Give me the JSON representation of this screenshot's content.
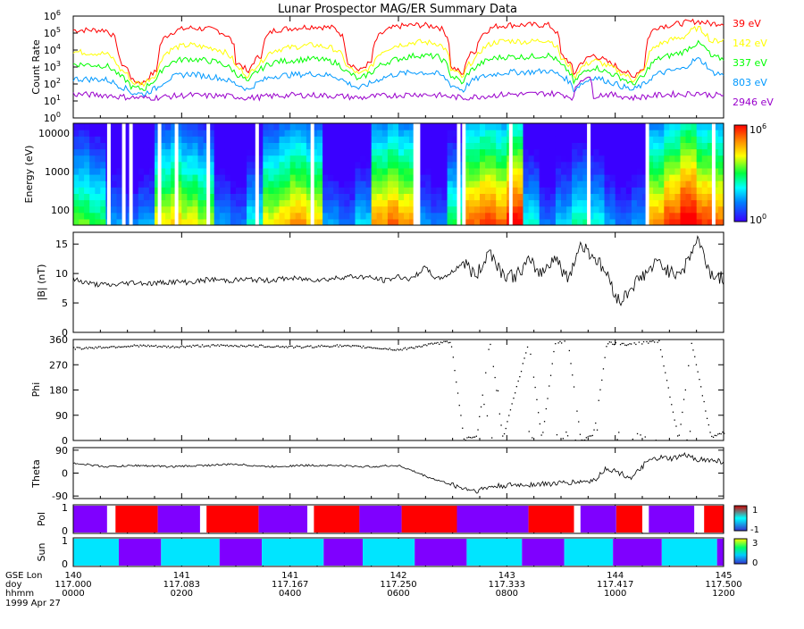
{
  "title": "Lunar Prospector MAG/ER Summary Data",
  "date_label": "1999 Apr 27",
  "chart_data": [
    {
      "panel": "count-rate",
      "type": "line",
      "ylabel": "Count Rate",
      "yscale": "log",
      "ylim": [
        1,
        1000000
      ],
      "yticks": [
        {
          "value": 1,
          "base": "10",
          "exp": "0"
        },
        {
          "value": 10,
          "base": "10",
          "exp": "1"
        },
        {
          "value": 100,
          "base": "10",
          "exp": "2"
        },
        {
          "value": 1000,
          "base": "10",
          "exp": "3"
        },
        {
          "value": 10000,
          "base": "10",
          "exp": "4"
        },
        {
          "value": 100000,
          "base": "10",
          "exp": "5"
        },
        {
          "value": 1000000,
          "base": "10",
          "exp": "6"
        }
      ],
      "series": [
        {
          "name": "39 eV",
          "color": "#ff0000",
          "x": [
            0,
            0.05,
            0.07,
            0.09,
            0.11,
            0.13,
            0.16,
            0.18,
            0.2,
            0.22,
            0.25,
            0.27,
            0.29,
            0.31,
            0.34,
            0.37,
            0.4,
            0.42,
            0.44,
            0.46,
            0.5,
            0.53,
            0.56,
            0.58,
            0.6,
            0.62,
            0.65,
            0.67,
            0.7,
            0.73,
            0.75,
            0.77,
            0.79,
            0.8,
            0.82,
            0.84,
            0.86,
            0.88,
            0.9,
            0.92,
            0.94,
            0.96,
            0.98,
            1
          ],
          "values": [
            150000,
            150000,
            2000,
            150,
            120,
            600,
            150000,
            200000,
            180000,
            150000,
            2000,
            300,
            5000,
            150000,
            200000,
            250000,
            200000,
            2000,
            500,
            2000,
            250000,
            300000,
            250000,
            1000,
            300,
            10000,
            250000,
            300000,
            300000,
            300000,
            5000,
            200,
            3000,
            5000,
            2000,
            800,
            200,
            1000,
            250000,
            300000,
            400000,
            500000,
            350000,
            400000
          ]
        },
        {
          "name": "142 eV",
          "color": "#ffff00",
          "x": [
            0,
            0.05,
            0.07,
            0.09,
            0.11,
            0.13,
            0.16,
            0.18,
            0.2,
            0.22,
            0.25,
            0.27,
            0.29,
            0.31,
            0.34,
            0.37,
            0.4,
            0.42,
            0.44,
            0.46,
            0.5,
            0.53,
            0.56,
            0.58,
            0.6,
            0.62,
            0.65,
            0.67,
            0.7,
            0.73,
            0.75,
            0.77,
            0.79,
            0.8,
            0.82,
            0.84,
            0.86,
            0.88,
            0.9,
            0.92,
            0.94,
            0.96,
            0.98,
            1
          ],
          "values": [
            8000,
            6000,
            800,
            120,
            100,
            400,
            15000,
            20000,
            15000,
            12000,
            1000,
            200,
            2000,
            10000,
            15000,
            20000,
            12000,
            1000,
            300,
            1000,
            20000,
            30000,
            25000,
            700,
            200,
            3000,
            30000,
            35000,
            30000,
            40000,
            3000,
            150,
            1500,
            2500,
            1200,
            500,
            150,
            600,
            20000,
            40000,
            60000,
            200000,
            30000,
            40000
          ]
        },
        {
          "name": "337 eV",
          "color": "#00ff00",
          "x": [
            0,
            0.05,
            0.07,
            0.09,
            0.11,
            0.13,
            0.16,
            0.18,
            0.2,
            0.22,
            0.25,
            0.27,
            0.29,
            0.31,
            0.34,
            0.37,
            0.4,
            0.42,
            0.44,
            0.46,
            0.5,
            0.53,
            0.56,
            0.58,
            0.6,
            0.62,
            0.65,
            0.67,
            0.7,
            0.73,
            0.75,
            0.77,
            0.79,
            0.8,
            0.82,
            0.84,
            0.86,
            0.88,
            0.9,
            0.92,
            0.94,
            0.96,
            0.98,
            1
          ],
          "values": [
            1500,
            1200,
            300,
            60,
            50,
            200,
            2500,
            3000,
            2500,
            2000,
            400,
            100,
            800,
            2000,
            2500,
            3000,
            2000,
            500,
            150,
            500,
            3000,
            5000,
            4000,
            300,
            100,
            1000,
            3500,
            4000,
            4000,
            5000,
            1200,
            80,
            600,
            1000,
            500,
            250,
            80,
            300,
            3000,
            5000,
            8000,
            25000,
            4000,
            3000
          ]
        },
        {
          "name": "803 eV",
          "color": "#0099ff",
          "x": [
            0,
            0.05,
            0.07,
            0.09,
            0.11,
            0.13,
            0.16,
            0.18,
            0.2,
            0.22,
            0.25,
            0.27,
            0.29,
            0.31,
            0.34,
            0.37,
            0.4,
            0.42,
            0.44,
            0.46,
            0.5,
            0.53,
            0.56,
            0.58,
            0.6,
            0.62,
            0.65,
            0.67,
            0.7,
            0.73,
            0.75,
            0.77,
            0.79,
            0.8,
            0.82,
            0.84,
            0.86,
            0.88,
            0.9,
            0.92,
            0.94,
            0.96,
            0.98,
            1
          ],
          "values": [
            200,
            180,
            80,
            30,
            25,
            60,
            300,
            400,
            300,
            250,
            100,
            40,
            150,
            300,
            350,
            400,
            300,
            120,
            50,
            120,
            400,
            500,
            400,
            90,
            40,
            200,
            400,
            500,
            500,
            600,
            300,
            40,
            150,
            250,
            150,
            80,
            40,
            100,
            400,
            600,
            800,
            3000,
            500,
            350
          ]
        },
        {
          "name": "2946 eV",
          "color": "#9900cc",
          "x": [
            0,
            0.05,
            0.07,
            0.09,
            0.11,
            0.13,
            0.16,
            0.18,
            0.2,
            0.22,
            0.25,
            0.27,
            0.29,
            0.31,
            0.34,
            0.37,
            0.4,
            0.42,
            0.44,
            0.46,
            0.5,
            0.53,
            0.56,
            0.58,
            0.6,
            0.62,
            0.65,
            0.67,
            0.7,
            0.73,
            0.75,
            0.77,
            0.79,
            0.8,
            0.82,
            0.84,
            0.86,
            0.88,
            0.9,
            0.92,
            0.94,
            0.96,
            0.98,
            1
          ],
          "values": [
            25,
            22,
            18,
            16,
            15,
            16,
            20,
            22,
            20,
            20,
            18,
            15,
            17,
            20,
            22,
            22,
            20,
            18,
            15,
            18,
            22,
            25,
            22,
            18,
            15,
            18,
            22,
            25,
            25,
            28,
            25,
            15,
            300,
            20,
            25,
            20,
            15,
            18,
            22,
            25,
            25,
            30,
            22,
            22
          ]
        }
      ]
    },
    {
      "panel": "energy-spectrogram",
      "type": "heatmap",
      "ylabel": "Energy (eV)",
      "yscale": "log",
      "ylim": [
        40,
        18000
      ],
      "yticks": [
        100,
        1000,
        10000
      ],
      "colorbar": {
        "min_label": {
          "base": "10",
          "exp": "0"
        },
        "max_label": {
          "base": "10",
          "exp": "6"
        }
      },
      "intensity_profile": [
        0.35,
        0.3,
        0.1,
        0.05,
        0.1,
        0.45,
        0.5,
        0.45,
        0.4,
        0.1,
        0.05,
        0.2,
        0.45,
        0.5,
        0.55,
        0.5,
        0.1,
        0.05,
        0.15,
        0.55,
        0.6,
        0.55,
        0.1,
        0.05,
        0.3,
        0.6,
        0.65,
        0.6,
        0.7,
        0.2,
        0.05,
        0.15,
        0.25,
        0.2,
        0.1,
        0.05,
        0.1,
        0.55,
        0.65,
        0.75,
        0.65,
        0.6
      ],
      "gap_positions": [
        0.052,
        0.075,
        0.086,
        0.13,
        0.156,
        0.205,
        0.28,
        0.365,
        0.523,
        0.528,
        0.59,
        0.598,
        0.67,
        0.79,
        0.88,
        0.982
      ]
    },
    {
      "panel": "b-magnitude",
      "type": "line",
      "ylabel": "|B| (nT)",
      "ylim": [
        0,
        17
      ],
      "yticks": [
        0,
        5,
        10,
        15
      ],
      "x": [
        0,
        0.03,
        0.06,
        0.09,
        0.12,
        0.15,
        0.18,
        0.21,
        0.24,
        0.27,
        0.3,
        0.33,
        0.36,
        0.39,
        0.42,
        0.45,
        0.48,
        0.5,
        0.52,
        0.54,
        0.56,
        0.58,
        0.6,
        0.62,
        0.64,
        0.66,
        0.68,
        0.7,
        0.72,
        0.74,
        0.76,
        0.78,
        0.8,
        0.82,
        0.84,
        0.86,
        0.88,
        0.9,
        0.92,
        0.94,
        0.96,
        0.98,
        1
      ],
      "values": [
        9,
        8.2,
        8,
        8.5,
        8.3,
        8.6,
        8.5,
        9,
        8.8,
        9,
        8.8,
        9.2,
        9,
        9,
        9.5,
        9.4,
        8.8,
        9.5,
        9,
        11,
        9,
        10,
        12,
        9.5,
        14,
        10,
        9.5,
        12,
        10,
        13,
        9,
        15,
        13,
        10,
        5,
        8,
        10,
        12,
        10,
        11,
        16,
        10,
        9
      ]
    },
    {
      "panel": "phi",
      "type": "scatter",
      "ylabel": "Phi",
      "ylim": [
        0,
        360
      ],
      "yticks": [
        0,
        90,
        180,
        270,
        360
      ],
      "x": [
        0,
        0.05,
        0.1,
        0.15,
        0.2,
        0.25,
        0.3,
        0.35,
        0.4,
        0.45,
        0.5,
        0.55,
        0.58,
        0.6,
        0.62,
        0.64,
        0.66,
        0.7,
        0.72,
        0.74,
        0.76,
        0.78,
        0.8,
        0.82,
        0.85,
        0.9,
        0.93,
        0.95,
        0.98,
        1
      ],
      "values": [
        330,
        335,
        340,
        335,
        340,
        340,
        338,
        335,
        340,
        335,
        325,
        345,
        355,
        5,
        20,
        355,
        10,
        355,
        5,
        350,
        355,
        0,
        25,
        350,
        345,
        355,
        5,
        350,
        15,
        30
      ]
    },
    {
      "panel": "theta",
      "type": "line",
      "ylabel": "Theta",
      "ylim": [
        -100,
        100
      ],
      "yticks": [
        -90,
        0,
        90
      ],
      "x": [
        0,
        0.05,
        0.1,
        0.15,
        0.2,
        0.25,
        0.3,
        0.35,
        0.4,
        0.45,
        0.5,
        0.55,
        0.6,
        0.62,
        0.64,
        0.66,
        0.7,
        0.75,
        0.8,
        0.82,
        0.84,
        0.86,
        0.88,
        0.9,
        0.92,
        0.94,
        0.96,
        0.98,
        1
      ],
      "values": [
        40,
        25,
        30,
        25,
        30,
        35,
        25,
        30,
        30,
        25,
        30,
        -20,
        -60,
        -70,
        -55,
        -50,
        -45,
        -40,
        -30,
        20,
        0,
        -20,
        40,
        60,
        55,
        70,
        55,
        50,
        45
      ]
    },
    {
      "panel": "pol",
      "type": "heatmap",
      "ylabel": "Pol",
      "ylim": [
        0,
        1
      ],
      "yticks": [
        0,
        1
      ],
      "colorbar": {
        "min_label": "-1",
        "max_label": "1",
        "min_color": "#3333cc",
        "max_color": "#cc0000"
      },
      "segments": [
        {
          "start": 0,
          "end": 0.052,
          "state": "purple"
        },
        {
          "start": 0.052,
          "end": 0.065,
          "state": "gap"
        },
        {
          "start": 0.065,
          "end": 0.13,
          "state": "red"
        },
        {
          "start": 0.13,
          "end": 0.195,
          "state": "purple"
        },
        {
          "start": 0.195,
          "end": 0.205,
          "state": "gap"
        },
        {
          "start": 0.205,
          "end": 0.285,
          "state": "red"
        },
        {
          "start": 0.285,
          "end": 0.36,
          "state": "purple"
        },
        {
          "start": 0.36,
          "end": 0.37,
          "state": "gap"
        },
        {
          "start": 0.37,
          "end": 0.44,
          "state": "red"
        },
        {
          "start": 0.44,
          "end": 0.505,
          "state": "purple"
        },
        {
          "start": 0.505,
          "end": 0.59,
          "state": "red"
        },
        {
          "start": 0.59,
          "end": 0.7,
          "state": "purple"
        },
        {
          "start": 0.7,
          "end": 0.77,
          "state": "red"
        },
        {
          "start": 0.77,
          "end": 0.78,
          "state": "gap"
        },
        {
          "start": 0.78,
          "end": 0.835,
          "state": "purple"
        },
        {
          "start": 0.835,
          "end": 0.875,
          "state": "red"
        },
        {
          "start": 0.875,
          "end": 0.885,
          "state": "gap"
        },
        {
          "start": 0.885,
          "end": 0.955,
          "state": "purple"
        },
        {
          "start": 0.955,
          "end": 0.97,
          "state": "gap"
        },
        {
          "start": 0.97,
          "end": 1,
          "state": "red"
        }
      ]
    },
    {
      "panel": "sun",
      "type": "heatmap",
      "ylabel": "Sun",
      "ylim": [
        0,
        1
      ],
      "yticks": [
        0,
        1
      ],
      "colorbar": {
        "min_label": "0",
        "max_label": "3",
        "min_color": "#3333cc",
        "max_color": "#ffff00"
      },
      "segments": [
        {
          "start": 0,
          "end": 0.07,
          "state": "cyan"
        },
        {
          "start": 0.07,
          "end": 0.135,
          "state": "purple"
        },
        {
          "start": 0.135,
          "end": 0.225,
          "state": "cyan"
        },
        {
          "start": 0.225,
          "end": 0.29,
          "state": "purple"
        },
        {
          "start": 0.29,
          "end": 0.385,
          "state": "cyan"
        },
        {
          "start": 0.385,
          "end": 0.445,
          "state": "purple"
        },
        {
          "start": 0.445,
          "end": 0.525,
          "state": "cyan"
        },
        {
          "start": 0.525,
          "end": 0.605,
          "state": "purple"
        },
        {
          "start": 0.605,
          "end": 0.69,
          "state": "cyan"
        },
        {
          "start": 0.69,
          "end": 0.755,
          "state": "purple"
        },
        {
          "start": 0.755,
          "end": 0.83,
          "state": "cyan"
        },
        {
          "start": 0.83,
          "end": 0.905,
          "state": "purple"
        },
        {
          "start": 0.905,
          "end": 0.99,
          "state": "cyan"
        },
        {
          "start": 0.99,
          "end": 1,
          "state": "purple"
        }
      ]
    }
  ],
  "x_axis": {
    "row_labels": [
      "GSE Lon",
      "doy",
      "hhmm"
    ],
    "ticks": [
      {
        "lon": "140",
        "doy": "117.000",
        "hhmm": "0000"
      },
      {
        "lon": "141",
        "doy": "117.083",
        "hhmm": "0200"
      },
      {
        "lon": "141",
        "doy": "117.167",
        "hhmm": "0400"
      },
      {
        "lon": "142",
        "doy": "117.250",
        "hhmm": "0600"
      },
      {
        "lon": "143",
        "doy": "117.333",
        "hhmm": "0800"
      },
      {
        "lon": "144",
        "doy": "117.417",
        "hhmm": "1000"
      },
      {
        "lon": "145",
        "doy": "117.500",
        "hhmm": "1200"
      }
    ]
  },
  "colors": {
    "pol_red": "#ff0000",
    "pol_purple": "#7f00ff",
    "sun_cyan": "#00e5ff",
    "sun_purple": "#7f00ff",
    "gap": "#ffffff"
  }
}
